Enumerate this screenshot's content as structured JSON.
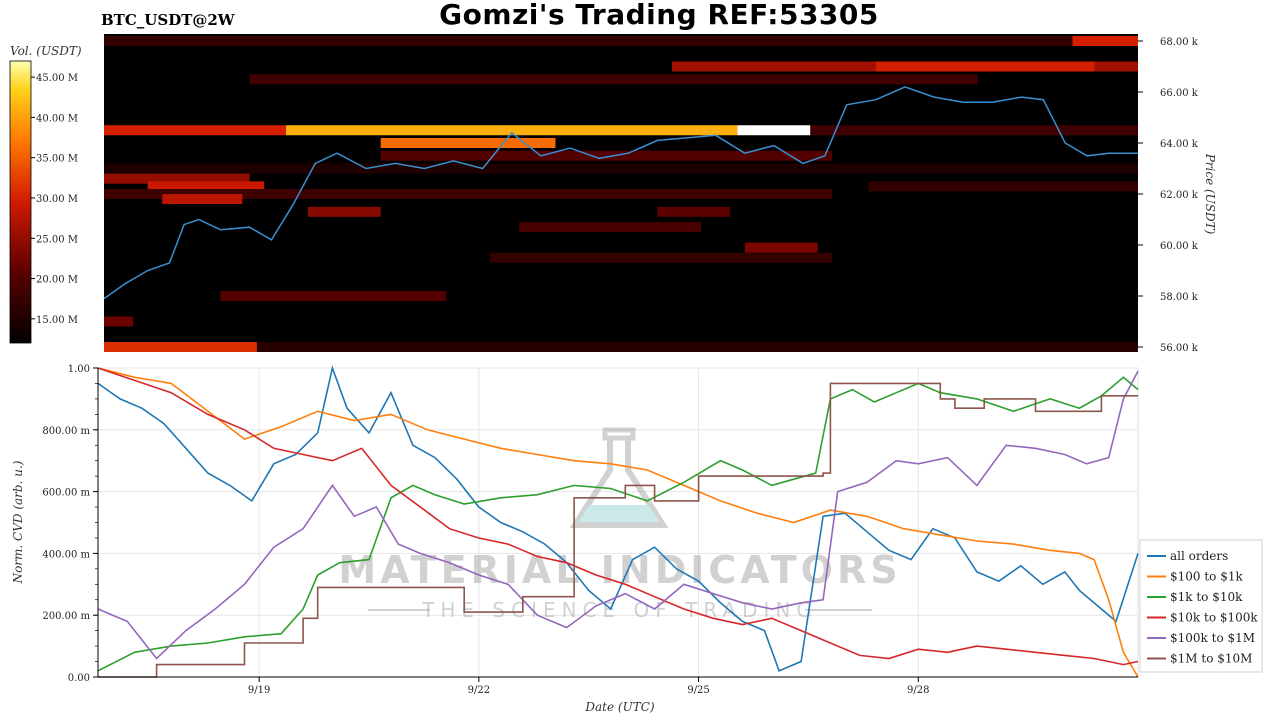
{
  "header": {
    "title": "Gomzi's Trading REF:53305",
    "symbol": "BTC_USDT@2W"
  },
  "watermark": {
    "line1": "MATERIAL INDICATORS",
    "line2": "THE SCIENCE OF TRADING"
  },
  "colors": {
    "all_orders": "#1f77b4",
    "100_1k": "#ff7f0e",
    "1k_10k": "#2ca02c",
    "10k_100k": "#d62728",
    "100k_1m": "#9467bd",
    "1m_10m": "#8c564b",
    "price_line": "#3a8fd0"
  },
  "chart_data": [
    {
      "type": "heatmap",
      "colorbar_label": "Vol. (USDT)",
      "colorbar_ticks": [
        "15.00 M",
        "20.00 M",
        "25.00 M",
        "30.00 M",
        "35.00 M",
        "40.00 M",
        "45.00 M"
      ],
      "colorbar_range": [
        12,
        47
      ],
      "ylabel": "Price (USDT)",
      "ylim": [
        56000,
        68500
      ],
      "y_ticks": [
        "56.00 k",
        "58.00 k",
        "60.00 k",
        "62.00 k",
        "64.00 k",
        "66.00 k",
        "68.00 k"
      ],
      "y_tick_values": [
        56000,
        58000,
        60000,
        62000,
        64000,
        66000,
        68000
      ],
      "xlim_days": [
        0,
        14.2
      ],
      "price_series": {
        "name": "price",
        "x_days": [
          0,
          0.3,
          0.6,
          0.9,
          1.1,
          1.3,
          1.6,
          2.0,
          2.3,
          2.6,
          2.9,
          3.2,
          3.6,
          4.0,
          4.4,
          4.8,
          5.2,
          5.6,
          6.0,
          6.4,
          6.8,
          7.2,
          7.6,
          8.0,
          8.4,
          8.8,
          9.2,
          9.6,
          9.9,
          10.2,
          10.6,
          11.0,
          11.4,
          11.8,
          12.2,
          12.6,
          12.9,
          13.2,
          13.5,
          13.8,
          14.2
        ],
        "values": [
          57900,
          58500,
          59000,
          59300,
          60800,
          61000,
          60600,
          60700,
          60200,
          61600,
          63200,
          63600,
          63000,
          63200,
          63000,
          63300,
          63000,
          64400,
          63500,
          63800,
          63400,
          63600,
          64100,
          64200,
          64300,
          63600,
          63900,
          63200,
          63500,
          65500,
          65700,
          66200,
          65800,
          65600,
          65600,
          65800,
          65700,
          64000,
          63500,
          63600,
          63600
        ]
      },
      "bands": [
        {
          "price": 68000,
          "x0": 0,
          "x1": 14.2,
          "vol": 17
        },
        {
          "price": 68000,
          "x0": 13.3,
          "x1": 14.2,
          "vol": 30
        },
        {
          "price": 67000,
          "x0": 7.8,
          "x1": 14.2,
          "vol": 26
        },
        {
          "price": 67000,
          "x0": 10.6,
          "x1": 13.6,
          "vol": 30
        },
        {
          "price": 66500,
          "x0": 2.0,
          "x1": 12.0,
          "vol": 18
        },
        {
          "price": 64500,
          "x0": 0,
          "x1": 2.5,
          "vol": 30
        },
        {
          "price": 64500,
          "x0": 2.5,
          "x1": 8.7,
          "vol": 41
        },
        {
          "price": 64500,
          "x0": 8.7,
          "x1": 9.7,
          "vol": 47
        },
        {
          "price": 64500,
          "x0": 9.7,
          "x1": 14.2,
          "vol": 18
        },
        {
          "price": 64000,
          "x0": 3.8,
          "x1": 6.2,
          "vol": 36
        },
        {
          "price": 63500,
          "x0": 3.8,
          "x1": 10.0,
          "vol": 20
        },
        {
          "price": 63000,
          "x0": 0,
          "x1": 14.2,
          "vol": 15
        },
        {
          "price": 62600,
          "x0": 0,
          "x1": 2.0,
          "vol": 25
        },
        {
          "price": 62300,
          "x0": 0.6,
          "x1": 2.2,
          "vol": 29
        },
        {
          "price": 62300,
          "x0": 10.5,
          "x1": 14.2,
          "vol": 17
        },
        {
          "price": 62000,
          "x0": 0,
          "x1": 10.0,
          "vol": 18
        },
        {
          "price": 61800,
          "x0": 0.8,
          "x1": 1.9,
          "vol": 28
        },
        {
          "price": 61300,
          "x0": 2.8,
          "x1": 3.8,
          "vol": 24
        },
        {
          "price": 61300,
          "x0": 7.6,
          "x1": 8.6,
          "vol": 21
        },
        {
          "price": 60700,
          "x0": 5.7,
          "x1": 8.2,
          "vol": 19
        },
        {
          "price": 59900,
          "x0": 8.8,
          "x1": 9.8,
          "vol": 23
        },
        {
          "price": 59500,
          "x0": 5.3,
          "x1": 10.0,
          "vol": 17
        },
        {
          "price": 58000,
          "x0": 1.6,
          "x1": 4.7,
          "vol": 20
        },
        {
          "price": 57000,
          "x0": 0,
          "x1": 0.4,
          "vol": 22
        },
        {
          "price": 56000,
          "x0": 0,
          "x1": 2.1,
          "vol": 31
        },
        {
          "price": 56000,
          "x0": 2.1,
          "x1": 14.2,
          "vol": 16
        }
      ]
    },
    {
      "type": "line",
      "xlabel": "Date (UTC)",
      "ylabel": "Norm. CVD (arb. u.)",
      "ylim": [
        0,
        1
      ],
      "y_ticks": [
        "0.00",
        "200.00 m",
        "400.00 m",
        "600.00 m",
        "800.00 m",
        "1.00"
      ],
      "y_tick_values": [
        0,
        0.2,
        0.4,
        0.6,
        0.8,
        1.0
      ],
      "xlim_days": [
        0,
        14.2
      ],
      "x_ticks": [
        "9/19",
        "9/22",
        "9/25",
        "9/28"
      ],
      "x_tick_values": [
        2.2,
        5.2,
        8.2,
        11.2
      ],
      "series": [
        {
          "name": "all orders",
          "color_key": "all_orders",
          "x_days": [
            0,
            0.3,
            0.6,
            0.9,
            1.2,
            1.5,
            1.8,
            2.1,
            2.4,
            2.7,
            3.0,
            3.2,
            3.4,
            3.7,
            4.0,
            4.3,
            4.6,
            4.9,
            5.2,
            5.5,
            5.8,
            6.1,
            6.4,
            6.7,
            7.0,
            7.3,
            7.6,
            7.9,
            8.2,
            8.5,
            8.8,
            9.1,
            9.3,
            9.6,
            9.9,
            10.2,
            10.5,
            10.8,
            11.1,
            11.4,
            11.7,
            12.0,
            12.3,
            12.6,
            12.9,
            13.2,
            13.4,
            13.7,
            13.9,
            14.2
          ],
          "values": [
            0.95,
            0.9,
            0.87,
            0.82,
            0.74,
            0.66,
            0.62,
            0.57,
            0.69,
            0.72,
            0.79,
            1.0,
            0.87,
            0.79,
            0.92,
            0.75,
            0.71,
            0.64,
            0.55,
            0.5,
            0.47,
            0.43,
            0.37,
            0.28,
            0.22,
            0.38,
            0.42,
            0.35,
            0.31,
            0.24,
            0.18,
            0.15,
            0.02,
            0.05,
            0.52,
            0.53,
            0.47,
            0.41,
            0.38,
            0.48,
            0.45,
            0.34,
            0.31,
            0.36,
            0.3,
            0.34,
            0.28,
            0.22,
            0.18,
            0.4
          ]
        },
        {
          "name": "$100 to $1k",
          "color_key": "100_1k",
          "x_days": [
            0,
            0.5,
            1.0,
            1.5,
            2.0,
            2.5,
            3.0,
            3.5,
            4.0,
            4.5,
            5.0,
            5.5,
            6.0,
            6.5,
            7.0,
            7.5,
            8.0,
            8.5,
            9.0,
            9.5,
            10.0,
            10.5,
            11.0,
            11.5,
            12.0,
            12.5,
            13.0,
            13.4,
            13.6,
            13.8,
            14.0,
            14.2
          ],
          "values": [
            1.0,
            0.97,
            0.95,
            0.86,
            0.77,
            0.81,
            0.86,
            0.83,
            0.85,
            0.8,
            0.77,
            0.74,
            0.72,
            0.7,
            0.69,
            0.67,
            0.62,
            0.57,
            0.53,
            0.5,
            0.54,
            0.52,
            0.48,
            0.46,
            0.44,
            0.43,
            0.41,
            0.4,
            0.38,
            0.25,
            0.08,
            0.0
          ]
        },
        {
          "name": "$1k to $10k",
          "color_key": "1k_10k",
          "x_days": [
            0,
            0.5,
            1.0,
            1.5,
            2.0,
            2.5,
            2.8,
            3.0,
            3.3,
            3.7,
            4.0,
            4.3,
            4.6,
            5.0,
            5.5,
            6.0,
            6.5,
            7.0,
            7.5,
            8.0,
            8.5,
            8.8,
            9.2,
            9.5,
            9.8,
            10.0,
            10.3,
            10.6,
            10.9,
            11.2,
            11.5,
            12.0,
            12.5,
            13.0,
            13.4,
            13.7,
            14.0,
            14.2
          ],
          "values": [
            0.02,
            0.08,
            0.1,
            0.11,
            0.13,
            0.14,
            0.22,
            0.33,
            0.37,
            0.38,
            0.58,
            0.62,
            0.59,
            0.56,
            0.58,
            0.59,
            0.62,
            0.61,
            0.57,
            0.63,
            0.7,
            0.67,
            0.62,
            0.64,
            0.66,
            0.9,
            0.93,
            0.89,
            0.92,
            0.95,
            0.92,
            0.9,
            0.86,
            0.9,
            0.87,
            0.91,
            0.97,
            0.93
          ]
        },
        {
          "name": "$10k to $100k",
          "color_key": "10k_100k",
          "x_days": [
            0,
            0.5,
            1.0,
            1.5,
            2.0,
            2.4,
            2.8,
            3.2,
            3.6,
            4.0,
            4.4,
            4.8,
            5.2,
            5.6,
            6.0,
            6.4,
            6.8,
            7.2,
            7.6,
            8.0,
            8.4,
            8.8,
            9.2,
            9.6,
            10.0,
            10.4,
            10.8,
            11.2,
            11.6,
            12.0,
            12.4,
            12.8,
            13.2,
            13.6,
            14.0,
            14.2
          ],
          "values": [
            1.0,
            0.96,
            0.92,
            0.85,
            0.8,
            0.74,
            0.72,
            0.7,
            0.74,
            0.62,
            0.55,
            0.48,
            0.45,
            0.43,
            0.39,
            0.37,
            0.33,
            0.3,
            0.26,
            0.22,
            0.19,
            0.17,
            0.19,
            0.15,
            0.11,
            0.07,
            0.06,
            0.09,
            0.08,
            0.1,
            0.09,
            0.08,
            0.07,
            0.06,
            0.04,
            0.05
          ]
        },
        {
          "name": "$100k to $1M",
          "color_key": "100k_1m",
          "x_days": [
            0,
            0.4,
            0.8,
            1.2,
            1.6,
            2.0,
            2.4,
            2.8,
            3.2,
            3.5,
            3.8,
            4.1,
            4.4,
            4.8,
            5.2,
            5.6,
            6.0,
            6.4,
            6.8,
            7.2,
            7.6,
            8.0,
            8.4,
            8.8,
            9.2,
            9.6,
            9.9,
            10.1,
            10.5,
            10.9,
            11.2,
            11.6,
            12.0,
            12.4,
            12.8,
            13.2,
            13.5,
            13.8,
            14.0,
            14.2
          ],
          "values": [
            0.22,
            0.18,
            0.06,
            0.15,
            0.22,
            0.3,
            0.42,
            0.48,
            0.62,
            0.52,
            0.55,
            0.43,
            0.4,
            0.37,
            0.33,
            0.3,
            0.2,
            0.16,
            0.23,
            0.27,
            0.22,
            0.3,
            0.27,
            0.24,
            0.22,
            0.24,
            0.25,
            0.6,
            0.63,
            0.7,
            0.69,
            0.71,
            0.62,
            0.75,
            0.74,
            0.72,
            0.69,
            0.71,
            0.9,
            0.99
          ]
        },
        {
          "name": "$1M to $10M",
          "color_key": "1m_10m",
          "x_days": [
            0,
            0.8,
            0.8,
            2.0,
            2.0,
            2.8,
            2.8,
            3.0,
            3.0,
            5.0,
            5.0,
            5.8,
            5.8,
            6.5,
            6.5,
            7.2,
            7.2,
            7.6,
            7.6,
            8.2,
            8.2,
            9.9,
            9.9,
            10.0,
            10.0,
            11.5,
            11.5,
            11.7,
            11.7,
            12.1,
            12.1,
            12.8,
            12.8,
            13.7,
            13.7,
            14.2
          ],
          "values": [
            0.0,
            0.0,
            0.04,
            0.04,
            0.11,
            0.11,
            0.19,
            0.19,
            0.29,
            0.29,
            0.21,
            0.21,
            0.26,
            0.26,
            0.58,
            0.58,
            0.62,
            0.62,
            0.57,
            0.57,
            0.65,
            0.65,
            0.66,
            0.66,
            0.95,
            0.95,
            0.9,
            0.9,
            0.87,
            0.87,
            0.9,
            0.9,
            0.86,
            0.86,
            0.91,
            0.91
          ]
        }
      ]
    }
  ]
}
